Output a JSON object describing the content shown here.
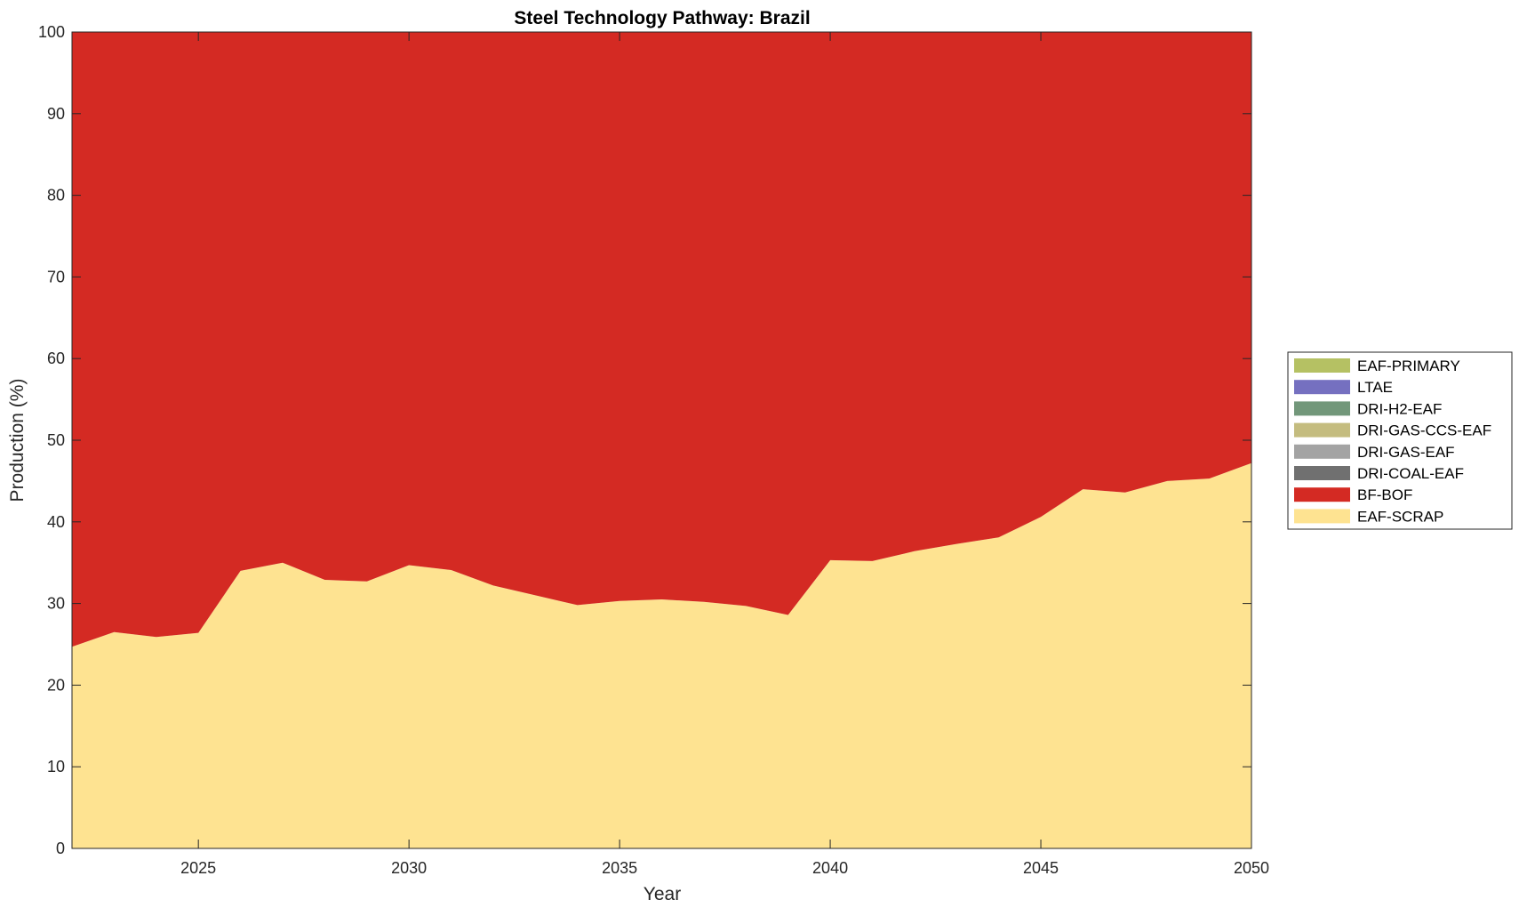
{
  "chart_data": {
    "type": "area",
    "title": "Steel Technology Pathway: Brazil",
    "xlabel": "Year",
    "ylabel": "Production (%)",
    "xlim": [
      2022,
      2050
    ],
    "ylim": [
      0,
      100
    ],
    "xticks": [
      2025,
      2030,
      2035,
      2040,
      2045,
      2050
    ],
    "yticks": [
      0,
      10,
      20,
      30,
      40,
      50,
      60,
      70,
      80,
      90,
      100
    ],
    "stacked": true,
    "legend_position": "right",
    "x": [
      2022,
      2023,
      2024,
      2025,
      2026,
      2027,
      2028,
      2029,
      2030,
      2031,
      2032,
      2033,
      2034,
      2035,
      2036,
      2037,
      2038,
      2039,
      2040,
      2041,
      2042,
      2043,
      2044,
      2045,
      2046,
      2047,
      2048,
      2049,
      2050
    ],
    "series": [
      {
        "name": "EAF-SCRAP",
        "color": "#fee391",
        "values": [
          24.7,
          26.5,
          25.9,
          26.4,
          34.0,
          35.0,
          32.9,
          32.7,
          34.7,
          34.1,
          32.2,
          31.0,
          29.8,
          30.3,
          30.5,
          30.2,
          29.7,
          28.6,
          35.3,
          35.2,
          36.4,
          37.3,
          38.1,
          40.6,
          44.0,
          43.6,
          45.0,
          45.3,
          47.2
        ]
      },
      {
        "name": "BF-BOF",
        "color": "#d42a23",
        "values": [
          75.3,
          73.5,
          74.1,
          73.6,
          66.0,
          65.0,
          67.1,
          67.3,
          65.3,
          65.9,
          67.8,
          69.0,
          70.2,
          69.7,
          69.5,
          69.8,
          70.3,
          71.4,
          64.7,
          64.8,
          63.6,
          62.7,
          61.9,
          59.4,
          56.0,
          56.4,
          55.0,
          54.7,
          52.8
        ]
      },
      {
        "name": "DRI-COAL-EAF",
        "color": "#707070",
        "values": [
          0,
          0,
          0,
          0,
          0,
          0,
          0,
          0,
          0,
          0,
          0,
          0,
          0,
          0,
          0,
          0,
          0,
          0,
          0,
          0,
          0,
          0,
          0,
          0,
          0,
          0,
          0,
          0,
          0
        ]
      },
      {
        "name": "DRI-GAS-EAF",
        "color": "#a3a3a3",
        "values": [
          0,
          0,
          0,
          0,
          0,
          0,
          0,
          0,
          0,
          0,
          0,
          0,
          0,
          0,
          0,
          0,
          0,
          0,
          0,
          0,
          0,
          0,
          0,
          0,
          0,
          0,
          0,
          0,
          0
        ]
      },
      {
        "name": "DRI-GAS-CCS-EAF",
        "color": "#c4bc7f",
        "values": [
          0,
          0,
          0,
          0,
          0,
          0,
          0,
          0,
          0,
          0,
          0,
          0,
          0,
          0,
          0,
          0,
          0,
          0,
          0,
          0,
          0,
          0,
          0,
          0,
          0,
          0,
          0,
          0,
          0
        ]
      },
      {
        "name": "DRI-H2-EAF",
        "color": "#72977a",
        "values": [
          0,
          0,
          0,
          0,
          0,
          0,
          0,
          0,
          0,
          0,
          0,
          0,
          0,
          0,
          0,
          0,
          0,
          0,
          0,
          0,
          0,
          0,
          0,
          0,
          0,
          0,
          0,
          0,
          0
        ]
      },
      {
        "name": "LTAE",
        "color": "#7570c0",
        "values": [
          0,
          0,
          0,
          0,
          0,
          0,
          0,
          0,
          0,
          0,
          0,
          0,
          0,
          0,
          0,
          0,
          0,
          0,
          0,
          0,
          0,
          0,
          0,
          0,
          0,
          0,
          0,
          0,
          0
        ]
      },
      {
        "name": "EAF-PRIMARY",
        "color": "#b5c163",
        "values": [
          0,
          0,
          0,
          0,
          0,
          0,
          0,
          0,
          0,
          0,
          0,
          0,
          0,
          0,
          0,
          0,
          0,
          0,
          0,
          0,
          0,
          0,
          0,
          0,
          0,
          0,
          0,
          0,
          0
        ]
      }
    ],
    "legend_order": [
      "EAF-PRIMARY",
      "LTAE",
      "DRI-H2-EAF",
      "DRI-GAS-CCS-EAF",
      "DRI-GAS-EAF",
      "DRI-COAL-EAF",
      "BF-BOF",
      "EAF-SCRAP"
    ]
  }
}
